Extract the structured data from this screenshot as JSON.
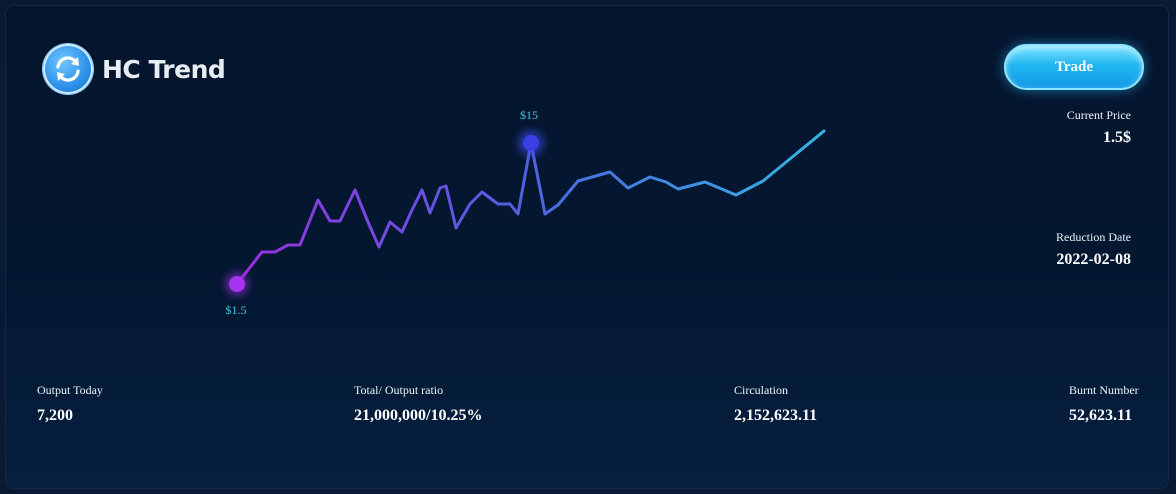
{
  "header": {
    "brand_title": "HC Trend",
    "logo_icon": "refresh-cycle-icon",
    "trade_label": "Trade"
  },
  "side_stats": {
    "current_price_label": "Current Price",
    "current_price_value": "1.5$",
    "reduction_date_label": "Reduction Date",
    "reduction_date_value": "2022-02-08"
  },
  "bottom_stats": {
    "output_today_label": "Output Today",
    "output_today_value": "7,200",
    "ratio_label": "Total/ Output ratio",
    "ratio_value": "21,000,000/10.25%",
    "circulation_label": "Circulation",
    "circulation_value": "2,152,623.11",
    "burnt_label": "Burnt Number",
    "burnt_value": "52,623.11"
  },
  "chart_data": {
    "type": "line",
    "start_label": "$1.5",
    "peak_label": "$15",
    "colors": {
      "start": "#9b2ee0",
      "mid": "#4f63e0",
      "end": "#2fb7e6",
      "label": "#3ec9e8"
    }
  }
}
